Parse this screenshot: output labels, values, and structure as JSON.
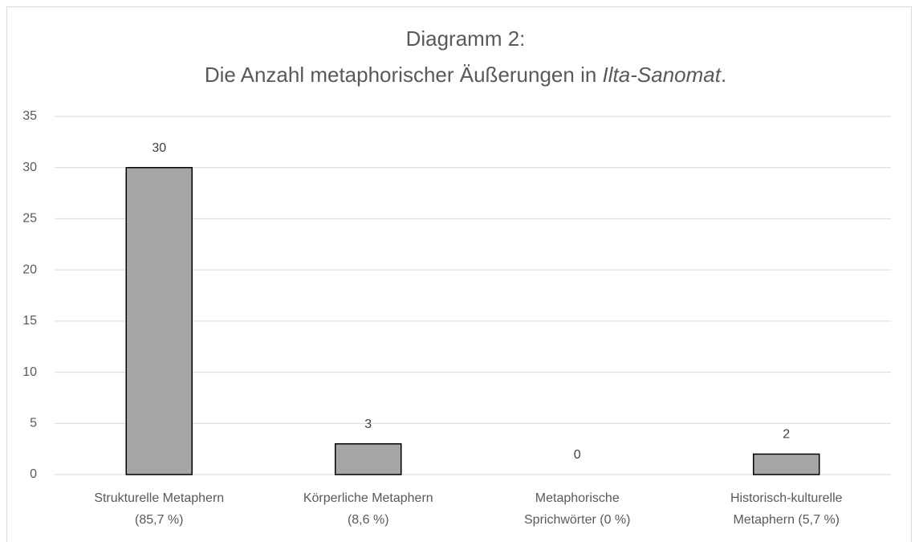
{
  "chart_data": {
    "type": "bar",
    "title": [
      "Diagramm 2:",
      [
        "Die Anzahl metaphorischer Äußerungen in ",
        "Ilta-Sanomat",
        "."
      ]
    ],
    "categories": [
      [
        "Strukturelle Metaphern",
        "(85,7 %)"
      ],
      [
        "Körperliche Metaphern",
        "(8,6 %)"
      ],
      [
        "Metaphorische",
        "Sprichwörter (0 %)"
      ],
      [
        "Historisch-kulturelle",
        "Metaphern (5,7 %)"
      ]
    ],
    "values": [
      30,
      3,
      0,
      2
    ],
    "color": "#a6a6a6",
    "ylim": [
      0,
      35
    ],
    "yticks": [
      0,
      5,
      10,
      15,
      20,
      25,
      30,
      35
    ],
    "grid": true
  }
}
